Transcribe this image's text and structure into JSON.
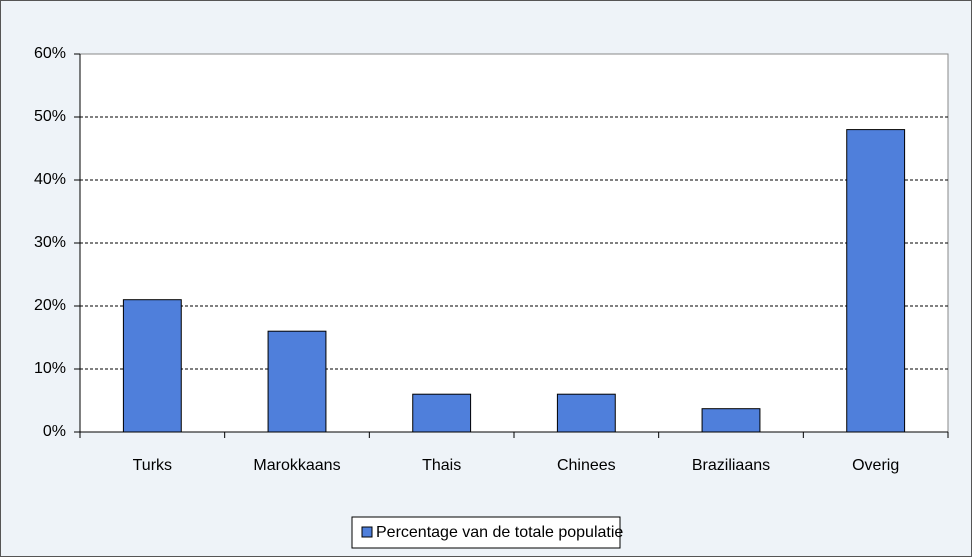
{
  "chart_data": {
    "type": "bar",
    "categories": [
      "Turks",
      "Marokkaans",
      "Thais",
      "Chinees",
      "Braziliaans",
      "Overig"
    ],
    "series": [
      {
        "name": "Percentage van de totale populatie",
        "color": "#4f7fdb",
        "values": [
          21,
          16,
          6,
          6,
          3.7,
          48
        ]
      }
    ],
    "ylim": [
      0,
      60
    ],
    "yticks": [
      {
        "value": 0,
        "label": "0%"
      },
      {
        "value": 10,
        "label": "10%"
      },
      {
        "value": 20,
        "label": "20%"
      },
      {
        "value": 30,
        "label": "30%"
      },
      {
        "value": 40,
        "label": "40%"
      },
      {
        "value": 50,
        "label": "50%"
      },
      {
        "value": 60,
        "label": "60%"
      }
    ],
    "grid": true,
    "legend": "bottom"
  }
}
